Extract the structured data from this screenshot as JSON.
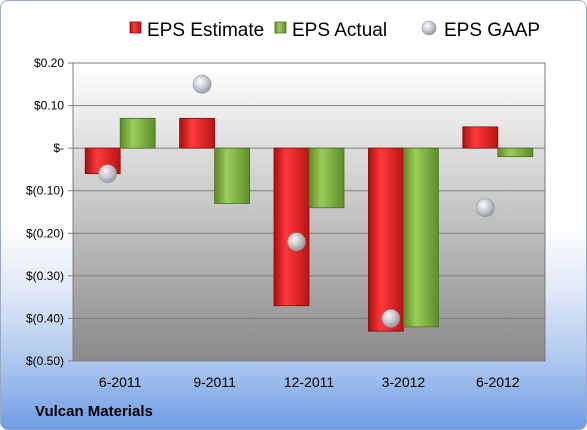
{
  "footer_label": "Vulcan Materials",
  "colors": {
    "estimate": "#d81e1e",
    "actual": "#79a83c",
    "gaap": "#b4b8c0"
  },
  "chart_data": {
    "type": "bar",
    "title": "",
    "xlabel": "",
    "ylabel": "",
    "categories": [
      "6-2011",
      "9-2011",
      "12-2011",
      "3-2012",
      "6-2012"
    ],
    "series": [
      {
        "name": "EPS Estimate",
        "kind": "bar",
        "values": [
          -0.06,
          0.07,
          -0.37,
          -0.43,
          0.05
        ]
      },
      {
        "name": "EPS Actual",
        "kind": "bar",
        "values": [
          0.07,
          -0.13,
          -0.14,
          -0.42,
          -0.02
        ]
      },
      {
        "name": "EPS GAAP",
        "kind": "marker",
        "values": [
          -0.06,
          0.15,
          -0.22,
          -0.4,
          -0.14
        ]
      }
    ],
    "ylim": [
      -0.5,
      0.2
    ],
    "y_ticks": [
      {
        "value": 0.2,
        "label": "$0.20"
      },
      {
        "value": 0.1,
        "label": "$0.10"
      },
      {
        "value": 0.0,
        "label": "$-"
      },
      {
        "value": -0.1,
        "label": "$(0.10)"
      },
      {
        "value": -0.2,
        "label": "$(0.20)"
      },
      {
        "value": -0.3,
        "label": "$(0.30)"
      },
      {
        "value": -0.4,
        "label": "$(0.40)"
      },
      {
        "value": -0.5,
        "label": "$(0.50)"
      }
    ],
    "grid": true,
    "legend_position": "top"
  }
}
